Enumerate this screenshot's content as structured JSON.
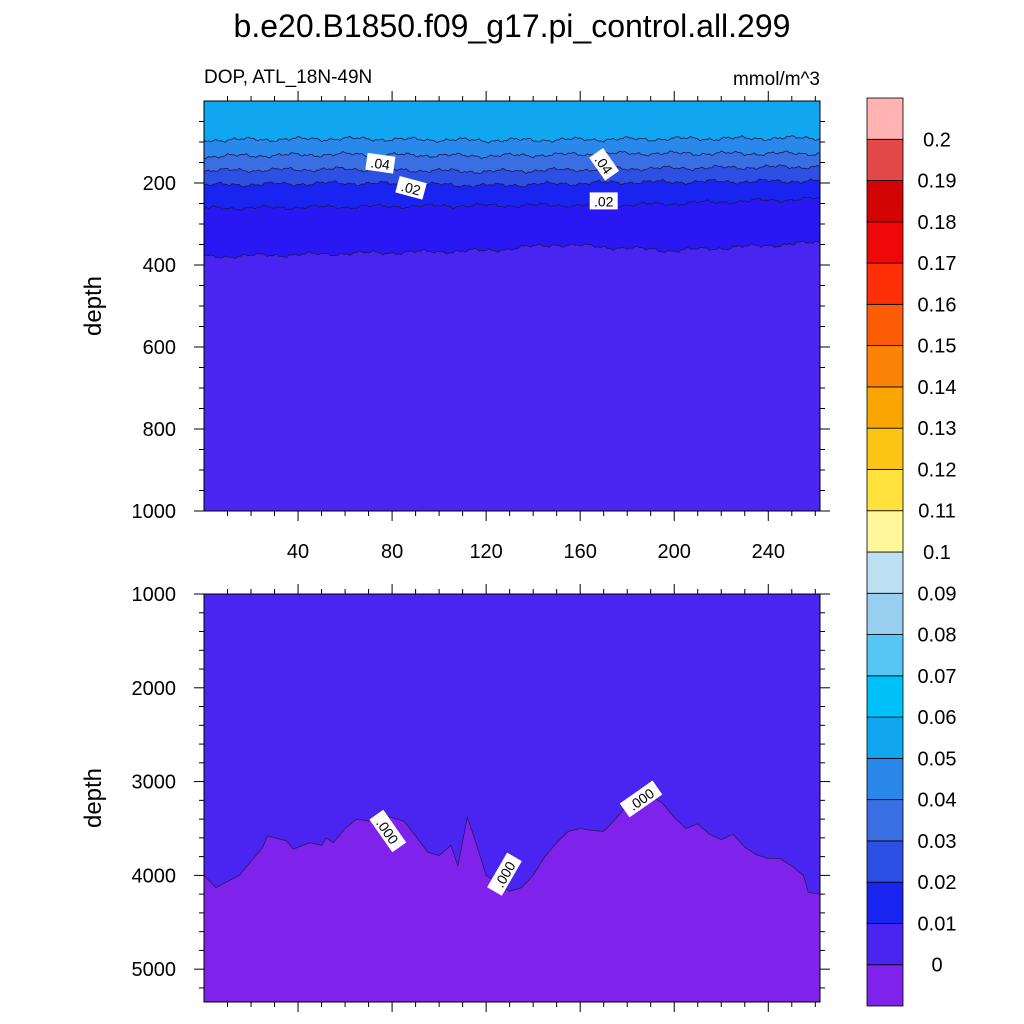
{
  "title": "b.e20.B1850.f09_g17.pi_control.all.299",
  "subtitle_left": "DOP, ATL_18N-49N",
  "subtitle_right": "mmol/m^3",
  "chart_data": [
    {
      "type": "contour",
      "panel": "upper",
      "ylabel": "depth",
      "y_reversed": true,
      "xlim": [
        0,
        262
      ],
      "ylim": [
        0,
        1000
      ],
      "x_ticks": [
        40,
        80,
        120,
        160,
        200,
        240
      ],
      "y_ticks": [
        200,
        400,
        600,
        800,
        1000
      ],
      "bands": [
        {
          "value_range": [
            0.05,
            0.06
          ],
          "color": "#11a6f0",
          "depth_bottom": [
            [
              0,
              95
            ],
            [
              60,
              92
            ],
            [
              120,
              96
            ],
            [
              180,
              93
            ],
            [
              262,
              90
            ]
          ]
        },
        {
          "value_range": [
            0.04,
            0.05
          ],
          "color": "#2a88ea",
          "depth_bottom": [
            [
              0,
              135
            ],
            [
              60,
              130
            ],
            [
              120,
              134
            ],
            [
              180,
              128
            ],
            [
              262,
              128
            ]
          ]
        },
        {
          "value_range": [
            0.03,
            0.04
          ],
          "color": "#3a6fe4",
          "depth_bottom": [
            [
              0,
              170
            ],
            [
              60,
              166
            ],
            [
              120,
              172
            ],
            [
              180,
              165
            ],
            [
              262,
              160
            ]
          ]
        },
        {
          "value_range": [
            0.02,
            0.03
          ],
          "color": "#2e4fe4",
          "depth_bottom": [
            [
              0,
              205
            ],
            [
              60,
              200
            ],
            [
              120,
              206
            ],
            [
              180,
              198
            ],
            [
              262,
              195
            ]
          ]
        },
        {
          "value_range": [
            0.01,
            0.02
          ],
          "color": "#1a24f0",
          "depth_bottom": [
            [
              0,
              262
            ],
            [
              60,
              258
            ],
            [
              120,
              255
            ],
            [
              180,
              254
            ],
            [
              262,
              238
            ]
          ]
        },
        {
          "value_range": [
            0.0,
            0.01
          ],
          "color": "#2a18f4",
          "depth_bottom": [
            [
              0,
              380
            ],
            [
              60,
              372
            ],
            [
              120,
              365
            ],
            [
              150,
              350
            ],
            [
              200,
              365
            ],
            [
              262,
              345
            ]
          ]
        },
        {
          "value_range": [
            -0.01,
            0.0
          ],
          "color": "#4a24f0",
          "depth_bottom": [
            [
              0,
              1000
            ],
            [
              262,
              1000
            ]
          ]
        }
      ],
      "contour_labels": [
        {
          "text": ".04",
          "x": 75,
          "y": 153
        },
        {
          "text": ".04",
          "x": 170,
          "y": 155
        },
        {
          "text": ".02",
          "x": 88,
          "y": 213
        },
        {
          "text": ".02",
          "x": 170,
          "y": 245
        }
      ]
    },
    {
      "type": "contour",
      "panel": "lower",
      "ylabel": "depth",
      "y_reversed": true,
      "xlim": [
        0,
        262
      ],
      "ylim": [
        1000,
        5350
      ],
      "y_ticks": [
        1000,
        2000,
        3000,
        4000,
        5000
      ],
      "bands": [
        {
          "value_range": [
            -0.01,
            0.0
          ],
          "color": "#4a24f0",
          "region": "above"
        },
        {
          "value_range": [
            -0.02,
            -0.01
          ],
          "color": "#7e22ec",
          "region": "below",
          "boundary": [
            [
              0,
              4000
            ],
            [
              5,
              4130
            ],
            [
              15,
              4000
            ],
            [
              25,
              3700
            ],
            [
              27,
              3580
            ],
            [
              35,
              3630
            ],
            [
              38,
              3720
            ],
            [
              45,
              3650
            ],
            [
              50,
              3680
            ],
            [
              52,
              3600
            ],
            [
              55,
              3650
            ],
            [
              60,
              3500
            ],
            [
              65,
              3400
            ],
            [
              70,
              3420
            ],
            [
              75,
              3350
            ],
            [
              85,
              3420
            ],
            [
              90,
              3580
            ],
            [
              95,
              3750
            ],
            [
              100,
              3790
            ],
            [
              105,
              3680
            ],
            [
              108,
              3900
            ],
            [
              112,
              3380
            ],
            [
              115,
              3600
            ],
            [
              120,
              4000
            ],
            [
              125,
              4080
            ],
            [
              130,
              4170
            ],
            [
              135,
              4130
            ],
            [
              140,
              4000
            ],
            [
              145,
              3800
            ],
            [
              150,
              3650
            ],
            [
              155,
              3530
            ],
            [
              160,
              3500
            ],
            [
              165,
              3520
            ],
            [
              170,
              3530
            ],
            [
              175,
              3400
            ],
            [
              180,
              3250
            ],
            [
              185,
              3170
            ],
            [
              190,
              3150
            ],
            [
              195,
              3230
            ],
            [
              200,
              3380
            ],
            [
              205,
              3500
            ],
            [
              210,
              3450
            ],
            [
              215,
              3560
            ],
            [
              220,
              3620
            ],
            [
              225,
              3560
            ],
            [
              230,
              3700
            ],
            [
              235,
              3780
            ],
            [
              240,
              3820
            ],
            [
              245,
              3820
            ],
            [
              250,
              3900
            ],
            [
              255,
              4000
            ],
            [
              257,
              4180
            ],
            [
              262,
              4200
            ]
          ]
        }
      ],
      "contour_labels": [
        {
          "text": ".000",
          "x": 78,
          "y": 3530
        },
        {
          "text": ".000",
          "x": 128,
          "y": 3990
        },
        {
          "text": ".000",
          "x": 186,
          "y": 3190
        }
      ]
    }
  ],
  "colorbar": {
    "levels": [
      "0",
      "0.01",
      "0.02",
      "0.03",
      "0.04",
      "0.05",
      "0.06",
      "0.07",
      "0.08",
      "0.09",
      "0.1",
      "0.11",
      "0.12",
      "0.13",
      "0.14",
      "0.15",
      "0.16",
      "0.17",
      "0.18",
      "0.19",
      "0.2"
    ],
    "colors": [
      "#7e22ec",
      "#4a24f0",
      "#1a24f0",
      "#2e4fe4",
      "#3a6fe4",
      "#2a88ea",
      "#11a6f0",
      "#00c0f8",
      "#56c6f4",
      "#99cfee",
      "#bde0f2",
      "#fff799",
      "#ffe33c",
      "#fbc516",
      "#faa602",
      "#fb8406",
      "#fd5c06",
      "#fe2e07",
      "#ee0808",
      "#d20404",
      "#e24848",
      "#ffb3b3"
    ]
  }
}
